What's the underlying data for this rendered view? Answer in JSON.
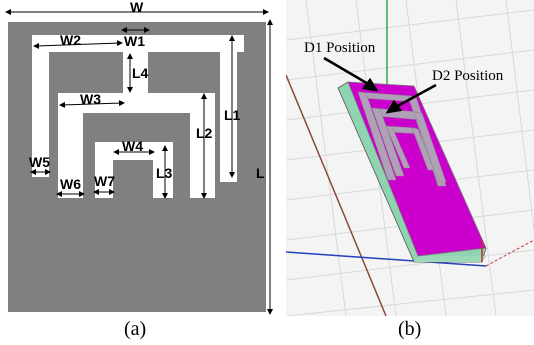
{
  "panel_a": {
    "labels": {
      "W": "W",
      "W1": "W1",
      "W2": "W2",
      "W3": "W3",
      "W4": "W4",
      "W5": "W5",
      "W6": "W6",
      "W7": "W7",
      "L": "L",
      "L1": "L1",
      "L2": "L2",
      "L3": "L3",
      "L4": "L4"
    },
    "caption": "(a)"
  },
  "panel_b": {
    "d1": "D1 Position",
    "d2": "D2 Position",
    "caption": "(b)"
  },
  "colors": {
    "metal": "#808080",
    "slot": "#ffffff",
    "patch": "#cc00cc",
    "substrate": "#8fd3b0",
    "grid": "#dcdcdc"
  }
}
